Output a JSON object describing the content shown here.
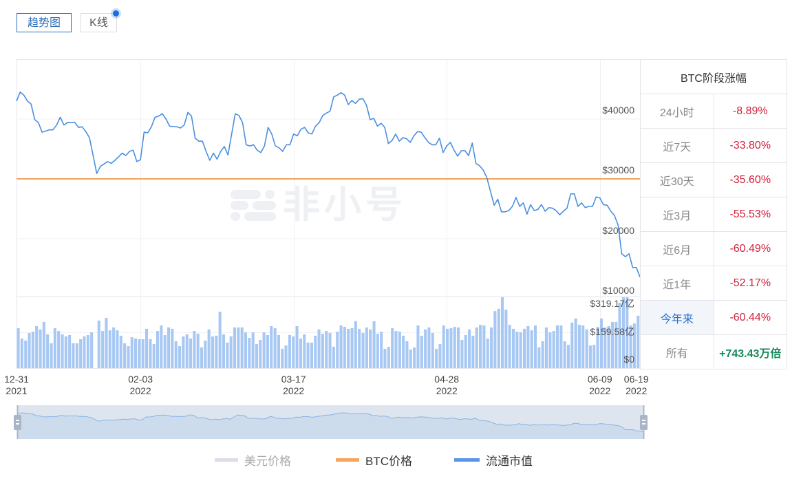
{
  "tabs": [
    {
      "label": "趋势图",
      "active": true
    },
    {
      "label": "K线",
      "active": false,
      "badge": true
    }
  ],
  "watermark": {
    "text": "非小号"
  },
  "axis": {
    "price_ticks": [
      "$40000",
      "$30000",
      "$20000",
      "$10000"
    ],
    "volume_ticks": [
      "$319.17亿",
      "$159.58亿",
      "$0"
    ],
    "x_ticks": [
      {
        "date": "12-31",
        "year": "2021",
        "day": 0
      },
      {
        "date": "02-03",
        "year": "2022",
        "day": 34
      },
      {
        "date": "03-17",
        "year": "2022",
        "day": 76
      },
      {
        "date": "04-28",
        "year": "2022",
        "day": 118
      },
      {
        "date": "06-09",
        "year": "2022",
        "day": 160
      },
      {
        "date": "06-19",
        "year": "2022",
        "day": 170
      }
    ]
  },
  "stats": {
    "title": "BTC阶段涨幅",
    "rows": [
      {
        "label": "24小时",
        "value": "-8.89%",
        "trend": "down"
      },
      {
        "label": "近7天",
        "value": "-33.80%",
        "trend": "down"
      },
      {
        "label": "近30天",
        "value": "-35.60%",
        "trend": "down"
      },
      {
        "label": "近3月",
        "value": "-55.53%",
        "trend": "down"
      },
      {
        "label": "近6月",
        "value": "-60.49%",
        "trend": "down"
      },
      {
        "label": "近1年",
        "value": "-52.17%",
        "trend": "down"
      },
      {
        "label": "今年来",
        "value": "-60.44%",
        "trend": "down",
        "active": true
      },
      {
        "label": "所有",
        "value": "+743.43万倍",
        "trend": "up"
      }
    ]
  },
  "legend": [
    {
      "label": "美元价格",
      "color": "#dcdde6",
      "text_color": "#aaaaaa",
      "enabled": false
    },
    {
      "label": "BTC价格",
      "color": "#f5a55e",
      "text_color": "#333333",
      "enabled": true
    },
    {
      "label": "流通市值",
      "color": "#5b95e8",
      "text_color": "#333333",
      "enabled": true
    }
  ],
  "chart_data": {
    "type": "line",
    "title": "",
    "xlabel": "",
    "ylabel": "",
    "x_range": [
      "2021-12-31",
      "2022-06-19"
    ],
    "x_max_day": 171,
    "x_ticks": [
      "12-31 2021",
      "02-03 2022",
      "03-17 2022",
      "04-28 2022",
      "06-09 2022",
      "06-19 2022"
    ],
    "y_ticks": [
      "$10000",
      "$20000",
      "$30000",
      "$40000"
    ],
    "ylim": [
      10000,
      50000
    ],
    "grid": true,
    "legend_position": "bottom",
    "series": [
      {
        "name": "美元价格",
        "type": "line",
        "color": "#dcdde6",
        "visible": false
      },
      {
        "name": "BTC价格",
        "type": "line",
        "color": "#f5a55e",
        "constant_value_on_axis": 30000
      },
      {
        "name": "流通市值",
        "type": "line",
        "color": "#4a8fe0",
        "points": [
          [
            0,
            43000
          ],
          [
            1,
            44500
          ],
          [
            2,
            44000
          ],
          [
            3,
            43000
          ],
          [
            4,
            42500
          ],
          [
            5,
            39900
          ],
          [
            6,
            39400
          ],
          [
            7,
            37800
          ],
          [
            9,
            38200
          ],
          [
            10,
            38200
          ],
          [
            11,
            39000
          ],
          [
            12,
            40300
          ],
          [
            13,
            39000
          ],
          [
            14,
            39400
          ],
          [
            16,
            39400
          ],
          [
            17,
            38600
          ],
          [
            18,
            38700
          ],
          [
            19,
            37900
          ],
          [
            20,
            36900
          ],
          [
            22,
            30900
          ],
          [
            23,
            32100
          ],
          [
            24,
            32500
          ],
          [
            25,
            32900
          ],
          [
            26,
            32600
          ],
          [
            27,
            33100
          ],
          [
            28,
            33700
          ],
          [
            29,
            34300
          ],
          [
            30,
            33900
          ],
          [
            31,
            34600
          ],
          [
            32,
            34800
          ],
          [
            33,
            32900
          ],
          [
            34,
            33200
          ],
          [
            35,
            37800
          ],
          [
            36,
            37700
          ],
          [
            37,
            38700
          ],
          [
            38,
            40300
          ],
          [
            39,
            40500
          ],
          [
            40,
            40900
          ],
          [
            41,
            40000
          ],
          [
            42,
            38800
          ],
          [
            44,
            38700
          ],
          [
            45,
            38500
          ],
          [
            46,
            39000
          ],
          [
            47,
            41100
          ],
          [
            48,
            40500
          ],
          [
            49,
            36800
          ],
          [
            50,
            36300
          ],
          [
            51,
            36300
          ],
          [
            52,
            34600
          ],
          [
            53,
            33100
          ],
          [
            54,
            34300
          ],
          [
            55,
            33300
          ],
          [
            56,
            34600
          ],
          [
            57,
            35400
          ],
          [
            58,
            34000
          ],
          [
            60,
            40900
          ],
          [
            61,
            40600
          ],
          [
            62,
            39400
          ],
          [
            63,
            35700
          ],
          [
            64,
            35500
          ],
          [
            65,
            35700
          ],
          [
            66,
            34800
          ],
          [
            67,
            34400
          ],
          [
            68,
            35500
          ],
          [
            69,
            38600
          ],
          [
            70,
            37500
          ],
          [
            71,
            35500
          ],
          [
            72,
            35200
          ],
          [
            73,
            34600
          ],
          [
            74,
            35700
          ],
          [
            75,
            35700
          ],
          [
            76,
            37500
          ],
          [
            77,
            37200
          ],
          [
            78,
            38300
          ],
          [
            79,
            38600
          ],
          [
            80,
            37700
          ],
          [
            81,
            37500
          ],
          [
            82,
            38800
          ],
          [
            83,
            39400
          ],
          [
            84,
            40600
          ],
          [
            85,
            41000
          ],
          [
            86,
            41300
          ],
          [
            87,
            43700
          ],
          [
            88,
            44000
          ],
          [
            89,
            44400
          ],
          [
            90,
            44000
          ],
          [
            91,
            42400
          ],
          [
            92,
            43100
          ],
          [
            93,
            42600
          ],
          [
            94,
            43300
          ],
          [
            95,
            43400
          ],
          [
            96,
            42300
          ],
          [
            97,
            39900
          ],
          [
            98,
            40100
          ],
          [
            99,
            38800
          ],
          [
            100,
            39300
          ],
          [
            101,
            38600
          ],
          [
            102,
            35900
          ],
          [
            103,
            36400
          ],
          [
            104,
            37500
          ],
          [
            105,
            36300
          ],
          [
            106,
            36900
          ],
          [
            107,
            36700
          ],
          [
            108,
            36100
          ],
          [
            109,
            37200
          ],
          [
            110,
            37900
          ],
          [
            111,
            37800
          ],
          [
            112,
            36900
          ],
          [
            113,
            36100
          ],
          [
            114,
            35700
          ],
          [
            115,
            35700
          ],
          [
            116,
            36800
          ],
          [
            117,
            34400
          ],
          [
            118,
            35500
          ],
          [
            119,
            36100
          ],
          [
            120,
            34800
          ],
          [
            121,
            33800
          ],
          [
            122,
            34700
          ],
          [
            123,
            34700
          ],
          [
            124,
            33900
          ],
          [
            125,
            36000
          ],
          [
            126,
            32600
          ],
          [
            127,
            32200
          ],
          [
            128,
            31500
          ],
          [
            129,
            30200
          ],
          [
            131,
            25600
          ],
          [
            132,
            26600
          ],
          [
            133,
            24500
          ],
          [
            134,
            24500
          ],
          [
            135,
            24700
          ],
          [
            136,
            25400
          ],
          [
            137,
            26900
          ],
          [
            138,
            25400
          ],
          [
            139,
            26000
          ],
          [
            140,
            24100
          ],
          [
            141,
            25700
          ],
          [
            142,
            24700
          ],
          [
            143,
            24900
          ],
          [
            144,
            25700
          ],
          [
            145,
            24600
          ],
          [
            146,
            25200
          ],
          [
            147,
            25100
          ],
          [
            148,
            24700
          ],
          [
            149,
            24000
          ],
          [
            150,
            24600
          ],
          [
            151,
            25100
          ],
          [
            152,
            27500
          ],
          [
            153,
            27500
          ],
          [
            154,
            25400
          ],
          [
            155,
            26000
          ],
          [
            156,
            25200
          ],
          [
            157,
            25400
          ],
          [
            158,
            25400
          ],
          [
            159,
            27000
          ],
          [
            160,
            26800
          ],
          [
            161,
            25700
          ],
          [
            162,
            25600
          ],
          [
            163,
            24600
          ],
          [
            164,
            23900
          ],
          [
            165,
            22300
          ],
          [
            166,
            17500
          ],
          [
            167,
            17000
          ],
          [
            168,
            17500
          ],
          [
            169,
            15200
          ],
          [
            170,
            15200
          ],
          [
            171,
            13600
          ]
        ]
      }
    ],
    "volume_bars": {
      "type": "bar",
      "color": "#a8c8f4",
      "unit": "亿",
      "ylim": [
        0,
        319.17
      ],
      "y_ticks": [
        "$0",
        "$159.58亿",
        "$319.17亿"
      ],
      "values": [
        180,
        133,
        124,
        158,
        164,
        189,
        174,
        208,
        152,
        112,
        180,
        167,
        152,
        143,
        149,
        112,
        112,
        130,
        143,
        149,
        161,
        0,
        214,
        167,
        226,
        170,
        183,
        170,
        146,
        112,
        99,
        139,
        133,
        130,
        130,
        177,
        130,
        108,
        167,
        192,
        149,
        183,
        177,
        121,
        99,
        143,
        152,
        133,
        167,
        155,
        93,
        124,
        174,
        143,
        146,
        254,
        152,
        115,
        143,
        183,
        183,
        183,
        161,
        136,
        161,
        108,
        127,
        161,
        149,
        189,
        180,
        149,
        87,
        102,
        149,
        143,
        189,
        133,
        152,
        115,
        115,
        146,
        174,
        155,
        167,
        158,
        96,
        164,
        192,
        186,
        177,
        180,
        211,
        177,
        158,
        183,
        174,
        211,
        155,
        164,
        87,
        96,
        180,
        167,
        164,
        146,
        121,
        84,
        93,
        192,
        146,
        174,
        183,
        158,
        87,
        108,
        192,
        177,
        180,
        186,
        183,
        127,
        149,
        174,
        146,
        183,
        195,
        192,
        133,
        183,
        257,
        267,
        319,
        263,
        195,
        177,
        164,
        161,
        177,
        189,
        170,
        192,
        93,
        121,
        183,
        161,
        167,
        192,
        192,
        121,
        105,
        205,
        223,
        195,
        192,
        174,
        102,
        105,
        186,
        223,
        183,
        189,
        208,
        208,
        294,
        319,
        319,
        192,
        201,
        236
      ]
    }
  }
}
